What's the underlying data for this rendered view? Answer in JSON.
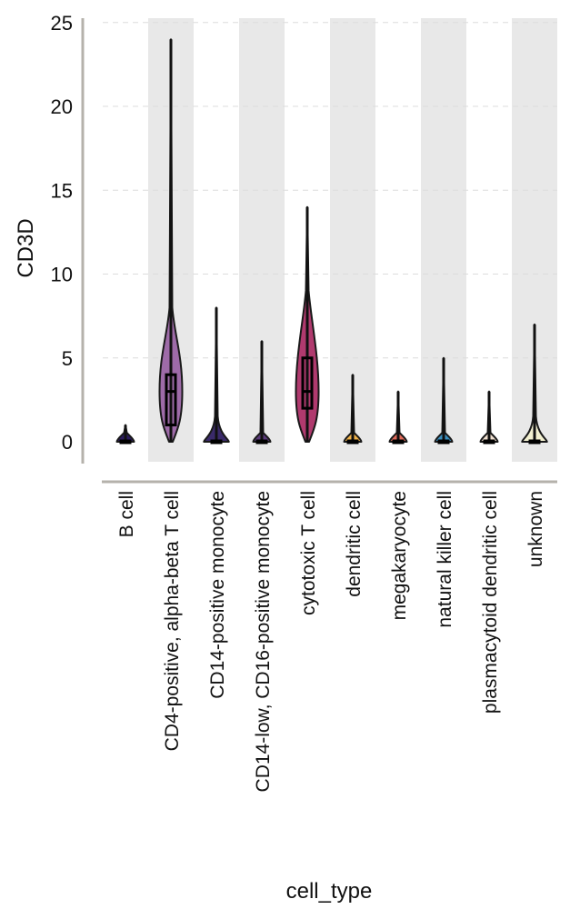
{
  "chart_data": {
    "type": "violin",
    "xlabel": "cell_type",
    "ylabel": "CD3D",
    "ylim": [
      -1.2,
      25
    ],
    "yticks": [
      0,
      5,
      10,
      15,
      20,
      25
    ],
    "ytick_labels": [
      "0",
      "5",
      "10",
      "15",
      "20",
      "25"
    ],
    "grid": true,
    "alternating_band_color": "#e8e8e8",
    "axis_color": "#b5b2ab",
    "categories": [
      "B cell",
      "CD4-positive, alpha-beta T cell",
      "CD14-positive monocyte",
      "CD14-low, CD16-positive monocyte",
      "cytotoxic T cell",
      "dendritic cell",
      "megakaryocyte",
      "natural killer cell",
      "plasmacytoid dendritic cell",
      "unknown"
    ],
    "series": [
      {
        "min": 0,
        "q1": 0,
        "median": 0,
        "q3": 0,
        "max": 1,
        "color": "#2a1a5e"
      },
      {
        "min": 0,
        "q1": 1,
        "median": 3,
        "q3": 4,
        "max": 24,
        "color": "#9e6ba8"
      },
      {
        "min": 0,
        "q1": 0,
        "median": 0,
        "q3": 0,
        "max": 8,
        "color": "#3a2a6a"
      },
      {
        "min": 0,
        "q1": 0,
        "median": 0,
        "q3": 0,
        "max": 6,
        "color": "#5a3a7a"
      },
      {
        "min": 0,
        "q1": 2,
        "median": 3,
        "q3": 5,
        "max": 14,
        "color": "#b03a6e"
      },
      {
        "min": 0,
        "q1": 0,
        "median": 0,
        "q3": 0,
        "max": 4,
        "color": "#f2b44a"
      },
      {
        "min": 0,
        "q1": 0,
        "median": 0,
        "q3": 0,
        "max": 3,
        "color": "#e06a5a"
      },
      {
        "min": 0,
        "q1": 0,
        "median": 0,
        "q3": 0,
        "max": 5,
        "color": "#3a8fbf"
      },
      {
        "min": 0,
        "q1": 0,
        "median": 0,
        "q3": 0,
        "max": 3,
        "color": "#f0e0d0"
      },
      {
        "min": 0,
        "q1": 0,
        "median": 0,
        "q3": 0,
        "max": 7,
        "color": "#f2f0d0"
      }
    ]
  }
}
